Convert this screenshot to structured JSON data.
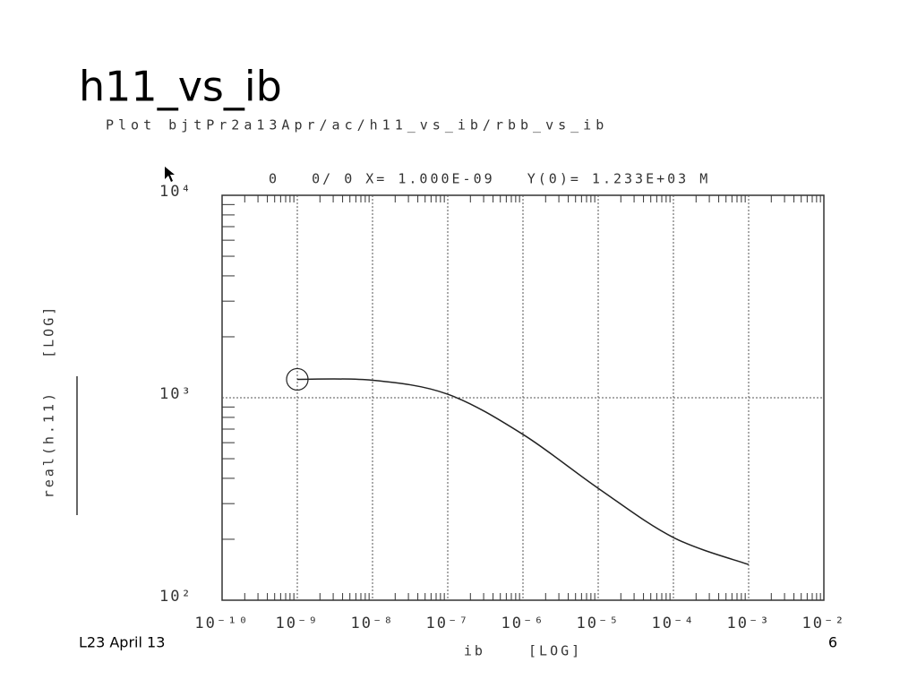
{
  "slide_title": "h11_vs_ib",
  "footer_left": "L23 April 13",
  "page_number": "6",
  "chart_data": {
    "type": "line",
    "title": "Plot bjtPr2a13Apr/ac/h11_vs_ib/rbb_vs_ib",
    "cursor_readout": "0   0/ 0 X= 1.000E-09   Y(0)= 1.233E+03 M",
    "x_label": "ib    [LOG]",
    "y_label": "real(h.11)   [LOG]",
    "x": [
      1e-09,
      1e-08,
      1e-07,
      1e-06,
      1e-05,
      0.0001,
      0.001
    ],
    "series": [
      {
        "name": "real(h.11)",
        "color": "#222222",
        "values": [
          1233,
          1220,
          1041,
          659,
          357,
          204,
          150
        ]
      }
    ],
    "xlim": [
      1e-10,
      0.01
    ],
    "ylim": [
      100,
      10000
    ],
    "xscale": "log",
    "yscale": "log",
    "grid": true,
    "xticks": [
      {
        "value": 1e-10,
        "label": "10⁻¹⁰"
      },
      {
        "value": 1e-09,
        "label": "10⁻⁹"
      },
      {
        "value": 1e-08,
        "label": "10⁻⁸"
      },
      {
        "value": 1e-07,
        "label": "10⁻⁷"
      },
      {
        "value": 1e-06,
        "label": "10⁻⁶"
      },
      {
        "value": 1e-05,
        "label": "10⁻⁵"
      },
      {
        "value": 0.0001,
        "label": "10⁻⁴"
      },
      {
        "value": 0.001,
        "label": "10⁻³"
      },
      {
        "value": 0.01,
        "label": "10⁻²"
      }
    ],
    "yticks": [
      {
        "value": 100,
        "label": "10²"
      },
      {
        "value": 1000,
        "label": "10³"
      },
      {
        "value": 10000,
        "label": "10⁴"
      }
    ]
  }
}
